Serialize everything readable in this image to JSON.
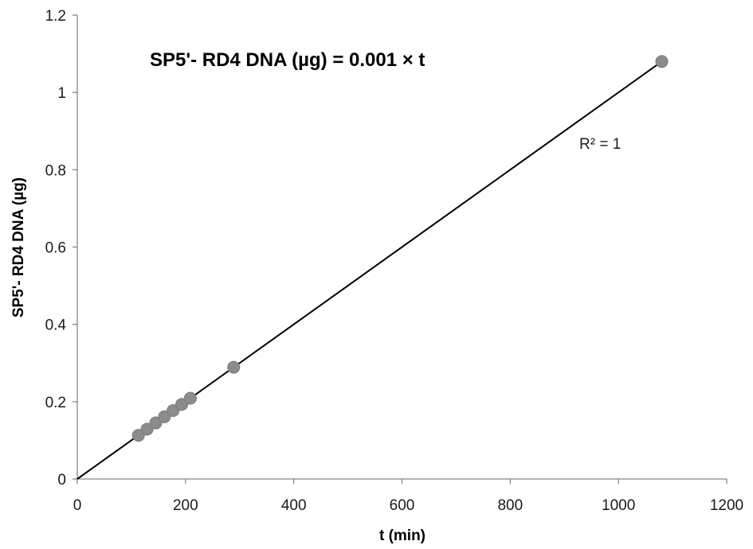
{
  "chart_data": {
    "type": "scatter",
    "title": "",
    "xlabel": "t (min)",
    "ylabel": "SP5'- RD4 DNA (µg)",
    "xlim": [
      0,
      1200
    ],
    "ylim": [
      0,
      1.2
    ],
    "x_ticks": [
      0,
      200,
      400,
      600,
      800,
      1000,
      1200
    ],
    "y_ticks": [
      0,
      0.2,
      0.4,
      0.6,
      0.8,
      1,
      1.2
    ],
    "x_tick_labels": [
      "0",
      "200",
      "400",
      "600",
      "800",
      "1000",
      "1200"
    ],
    "y_tick_labels": [
      "0",
      "0.2",
      "0.4",
      "0.6",
      "0.8",
      "1",
      "1.2"
    ],
    "grid": false,
    "legend": "none",
    "series": [
      {
        "x": [
          113,
          129,
          145,
          161,
          177,
          193,
          209,
          289,
          1080
        ],
        "y": [
          0.113,
          0.129,
          0.145,
          0.161,
          0.177,
          0.193,
          0.209,
          0.289,
          1.08
        ],
        "marker_color": "#8c8c8c"
      }
    ],
    "trendline": {
      "slope": 0.001,
      "intercept": 0,
      "x_range": [
        0,
        1080
      ],
      "color": "#000000"
    },
    "annotations": {
      "equation": "SP5'- RD4 DNA (µg) = 0.001 × t",
      "r_squared": "R² = 1"
    }
  }
}
